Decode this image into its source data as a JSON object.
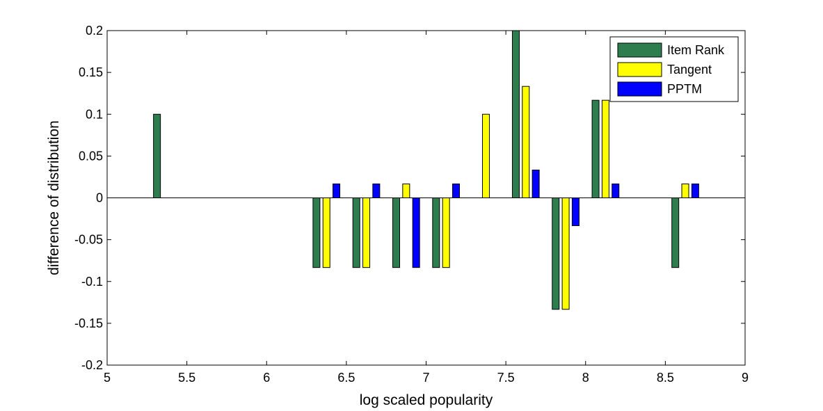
{
  "chart_data": {
    "type": "bar",
    "title": "",
    "xlabel": "log scaled popularity",
    "ylabel": "difference of distribution",
    "xlim": [
      5,
      9
    ],
    "ylim": [
      -0.2,
      0.2
    ],
    "xticks": [
      "5",
      "5.5",
      "6",
      "6.5",
      "7",
      "7.5",
      "8",
      "8.5",
      "9"
    ],
    "yticks": [
      "-0.2",
      "-0.15",
      "-0.1",
      "-0.05",
      "0",
      "0.05",
      "0.1",
      "0.15",
      "0.2"
    ],
    "legend_position": "top-right",
    "categories": [
      5.375,
      6.375,
      6.625,
      6.875,
      7.125,
      7.375,
      7.625,
      7.875,
      8.125,
      8.625
    ],
    "series": [
      {
        "name": "Item Rank",
        "color": "#2e7d4f",
        "values": [
          0.1,
          -0.0833,
          -0.0833,
          -0.0833,
          -0.0833,
          0,
          0.2,
          -0.1333,
          0.1167,
          -0.0833
        ]
      },
      {
        "name": "Tangent",
        "color": "#ffff00",
        "values": [
          0,
          -0.0833,
          -0.0833,
          0.0167,
          -0.0833,
          0.1,
          0.1333,
          -0.1333,
          0.1167,
          0.0167
        ]
      },
      {
        "name": "PPTM",
        "color": "#0000ff",
        "values": [
          0,
          0.0167,
          0.0167,
          -0.0833,
          0.0167,
          0,
          0.0333,
          -0.0333,
          0.0167,
          0.0167
        ]
      }
    ]
  }
}
